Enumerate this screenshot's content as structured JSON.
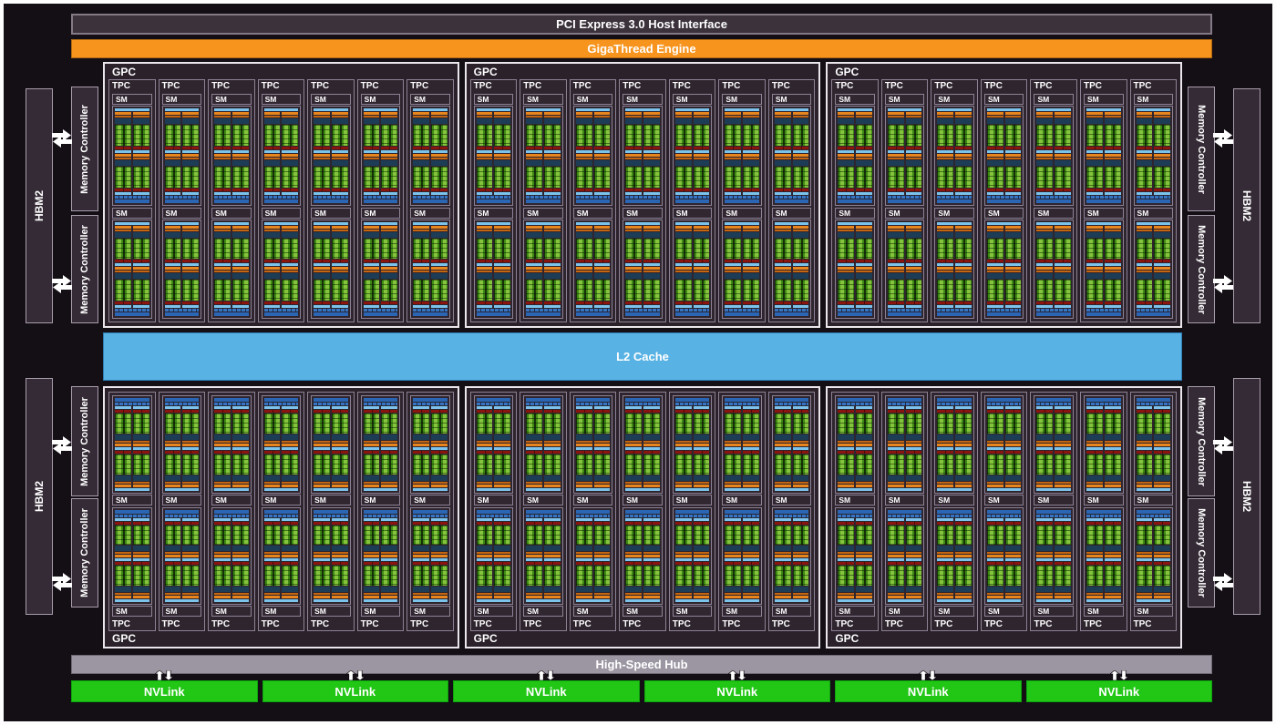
{
  "bars": {
    "pci": "PCI Express 3.0 Host Interface",
    "gigathread": "GigaThread Engine",
    "l2": "L2 Cache",
    "hub": "High-Speed Hub"
  },
  "labels": {
    "gpc": "GPC",
    "tpc": "TPC",
    "sm": "SM",
    "hbm2": "HBM2",
    "memory_controller": "Memory Controller",
    "nvlink": "NVLink"
  },
  "layout": {
    "gpc_count": 6,
    "gpc_columns": 3,
    "gpc_rows": 2,
    "tpcs_per_gpc": 7,
    "sms_per_tpc": 2,
    "nvlink_count": 6,
    "hbm2_blocks_per_side": 2,
    "memory_controllers_per_side": 4
  },
  "colors": {
    "bg": "#140e15",
    "frame": "#fdfdfd",
    "barDark": "#3b323b",
    "barBorder": "#847a86",
    "orange": "#f7941d",
    "l2": "#58b2e4",
    "hub": "#9b96a2",
    "green": "#22c716",
    "sideBg": "#352b36",
    "sideBorder": "#a89dab",
    "gpcBg": "#2a212a",
    "tpcBg": "#2e252e",
    "borderWhite": "#eae6ec",
    "borderGray": "#8d8295",
    "smLabelBg": "#312731",
    "lb": "#7cc3ec",
    "smOrange": "#e8851d",
    "smOrange2": "#c4650f",
    "navy": "#1d3c56",
    "smRed": "#8a150f",
    "smBlue": "#3575c4",
    "smBlueDark": "#2a66b4",
    "coreGreenDark": "#3f8a14",
    "coreGreenLight": "#84c43c"
  }
}
